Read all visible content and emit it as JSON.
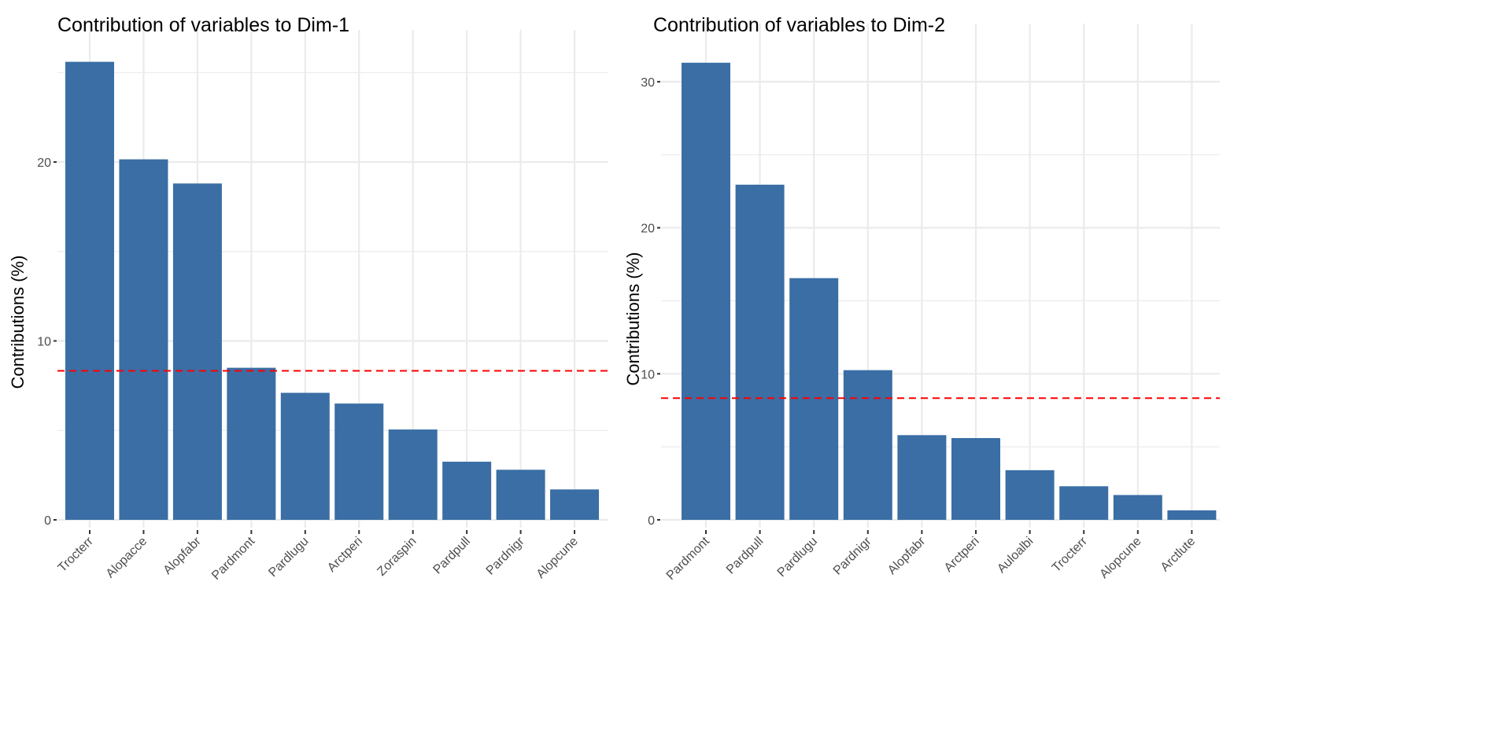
{
  "colors": {
    "bar": "#3A6EA5",
    "reference_line": "#FF0000",
    "grid": "#EBEBEB"
  },
  "chart_data": [
    {
      "type": "bar",
      "title": "Contribution of variables to Dim-1",
      "xlabel": "",
      "ylabel": "Contributions (%)",
      "categories": [
        "Trocterr",
        "Alopacce",
        "Alopfabr",
        "Pardmont",
        "Pardlugu",
        "Arctperi",
        "Zoraspin",
        "Pardpull",
        "Pardnigr",
        "Alopcune"
      ],
      "values": [
        25.6,
        20.15,
        18.8,
        8.5,
        7.1,
        6.5,
        5.05,
        3.25,
        2.8,
        1.7
      ],
      "yticks": [
        0,
        10,
        20
      ],
      "ylim": [
        0,
        26.5
      ],
      "reference_line": 8.33,
      "grid": true
    },
    {
      "type": "bar",
      "title": "Contribution of variables to Dim-2",
      "xlabel": "",
      "ylabel": "Contributions (%)",
      "categories": [
        "Pardmont",
        "Pardpull",
        "Pardlugu",
        "Pardnigr",
        "Alopfabr",
        "Arctperi",
        "Auloalbi",
        "Trocterr",
        "Alopcune",
        "Arctlute"
      ],
      "values": [
        31.3,
        22.95,
        16.55,
        10.25,
        5.8,
        5.6,
        3.4,
        2.3,
        1.7,
        0.65
      ],
      "yticks": [
        0,
        10,
        20,
        30
      ],
      "ylim": [
        0,
        32.9
      ],
      "reference_line": 8.33,
      "grid": true
    }
  ]
}
